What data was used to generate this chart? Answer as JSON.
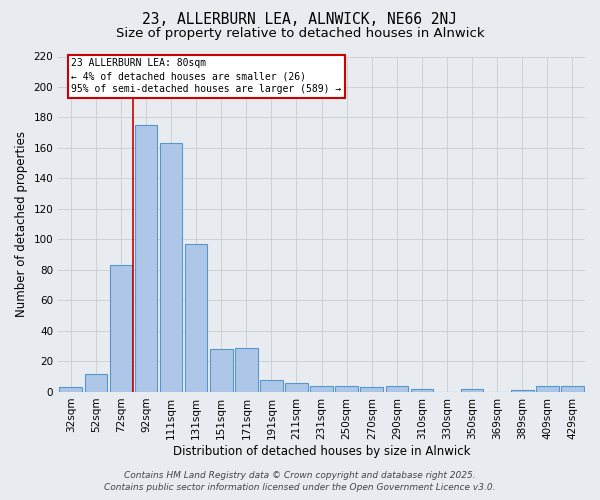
{
  "title_line1": "23, ALLERBURN LEA, ALNWICK, NE66 2NJ",
  "title_line2": "Size of property relative to detached houses in Alnwick",
  "xlabel": "Distribution of detached houses by size in Alnwick",
  "ylabel": "Number of detached properties",
  "categories": [
    "32sqm",
    "52sqm",
    "72sqm",
    "92sqm",
    "111sqm",
    "131sqm",
    "151sqm",
    "171sqm",
    "191sqm",
    "211sqm",
    "231sqm",
    "250sqm",
    "270sqm",
    "290sqm",
    "310sqm",
    "330sqm",
    "350sqm",
    "369sqm",
    "389sqm",
    "409sqm",
    "429sqm"
  ],
  "values": [
    3,
    12,
    83,
    175,
    163,
    97,
    28,
    29,
    8,
    6,
    4,
    4,
    3,
    4,
    2,
    0,
    2,
    0,
    1,
    4,
    4
  ],
  "bar_color": "#aec6e8",
  "bar_edge_color": "#5599cc",
  "bar_linewidth": 0.8,
  "grid_color": "#cccccc",
  "background_color": "#e8ecf0",
  "vline_x_index": 2.5,
  "vline_color": "#cc0000",
  "annotation_text": "23 ALLERBURN LEA: 80sqm\n← 4% of detached houses are smaller (26)\n95% of semi-detached houses are larger (589) →",
  "annotation_box_color": "#ffffff",
  "annotation_box_edge": "#cc0000",
  "ylim": [
    0,
    220
  ],
  "yticks": [
    0,
    20,
    40,
    60,
    80,
    100,
    120,
    140,
    160,
    180,
    200,
    220
  ],
  "footer_line1": "Contains HM Land Registry data © Crown copyright and database right 2025.",
  "footer_line2": "Contains public sector information licensed under the Open Government Licence v3.0.",
  "title_fontsize": 10.5,
  "subtitle_fontsize": 9.5,
  "axis_label_fontsize": 8.5,
  "tick_fontsize": 7.5,
  "annotation_fontsize": 7,
  "footer_fontsize": 6.5
}
